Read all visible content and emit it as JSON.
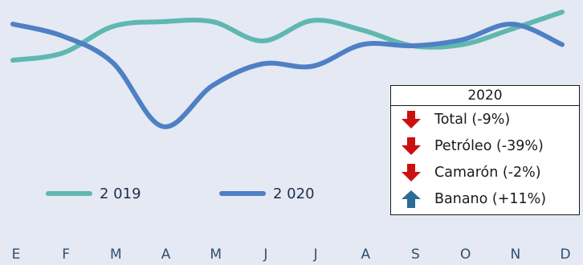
{
  "chart_data": {
    "type": "line",
    "categories": [
      "E",
      "F",
      "M",
      "A",
      "M",
      "J",
      "J",
      "A",
      "S",
      "O",
      "N",
      "D"
    ],
    "series": [
      {
        "name": "2 019",
        "color": "#5fb8b0",
        "values": [
          0.7,
          0.76,
          0.98,
          1.02,
          1.02,
          0.86,
          1.03,
          0.95,
          0.82,
          0.83,
          0.96,
          1.1
        ]
      },
      {
        "name": "2 020",
        "color": "#4f7fc4",
        "values": [
          1.0,
          0.9,
          0.68,
          0.15,
          0.49,
          0.67,
          0.65,
          0.83,
          0.82,
          0.87,
          1.0,
          0.83
        ]
      }
    ],
    "ylim": [
      0,
      1.2
    ],
    "grid": false,
    "legend": "bottom-left"
  },
  "summary_box": {
    "title": "2020",
    "items": [
      {
        "label": "Total (-9%)",
        "direction": "down",
        "color": "#cc1010"
      },
      {
        "label": "Petróleo (-39%)",
        "direction": "down",
        "color": "#cc1010"
      },
      {
        "label": "Camarón (-2%)",
        "direction": "down",
        "color": "#cc1010"
      },
      {
        "label": "Banano (+11%)",
        "direction": "up",
        "color": "#2e6b96"
      }
    ]
  }
}
